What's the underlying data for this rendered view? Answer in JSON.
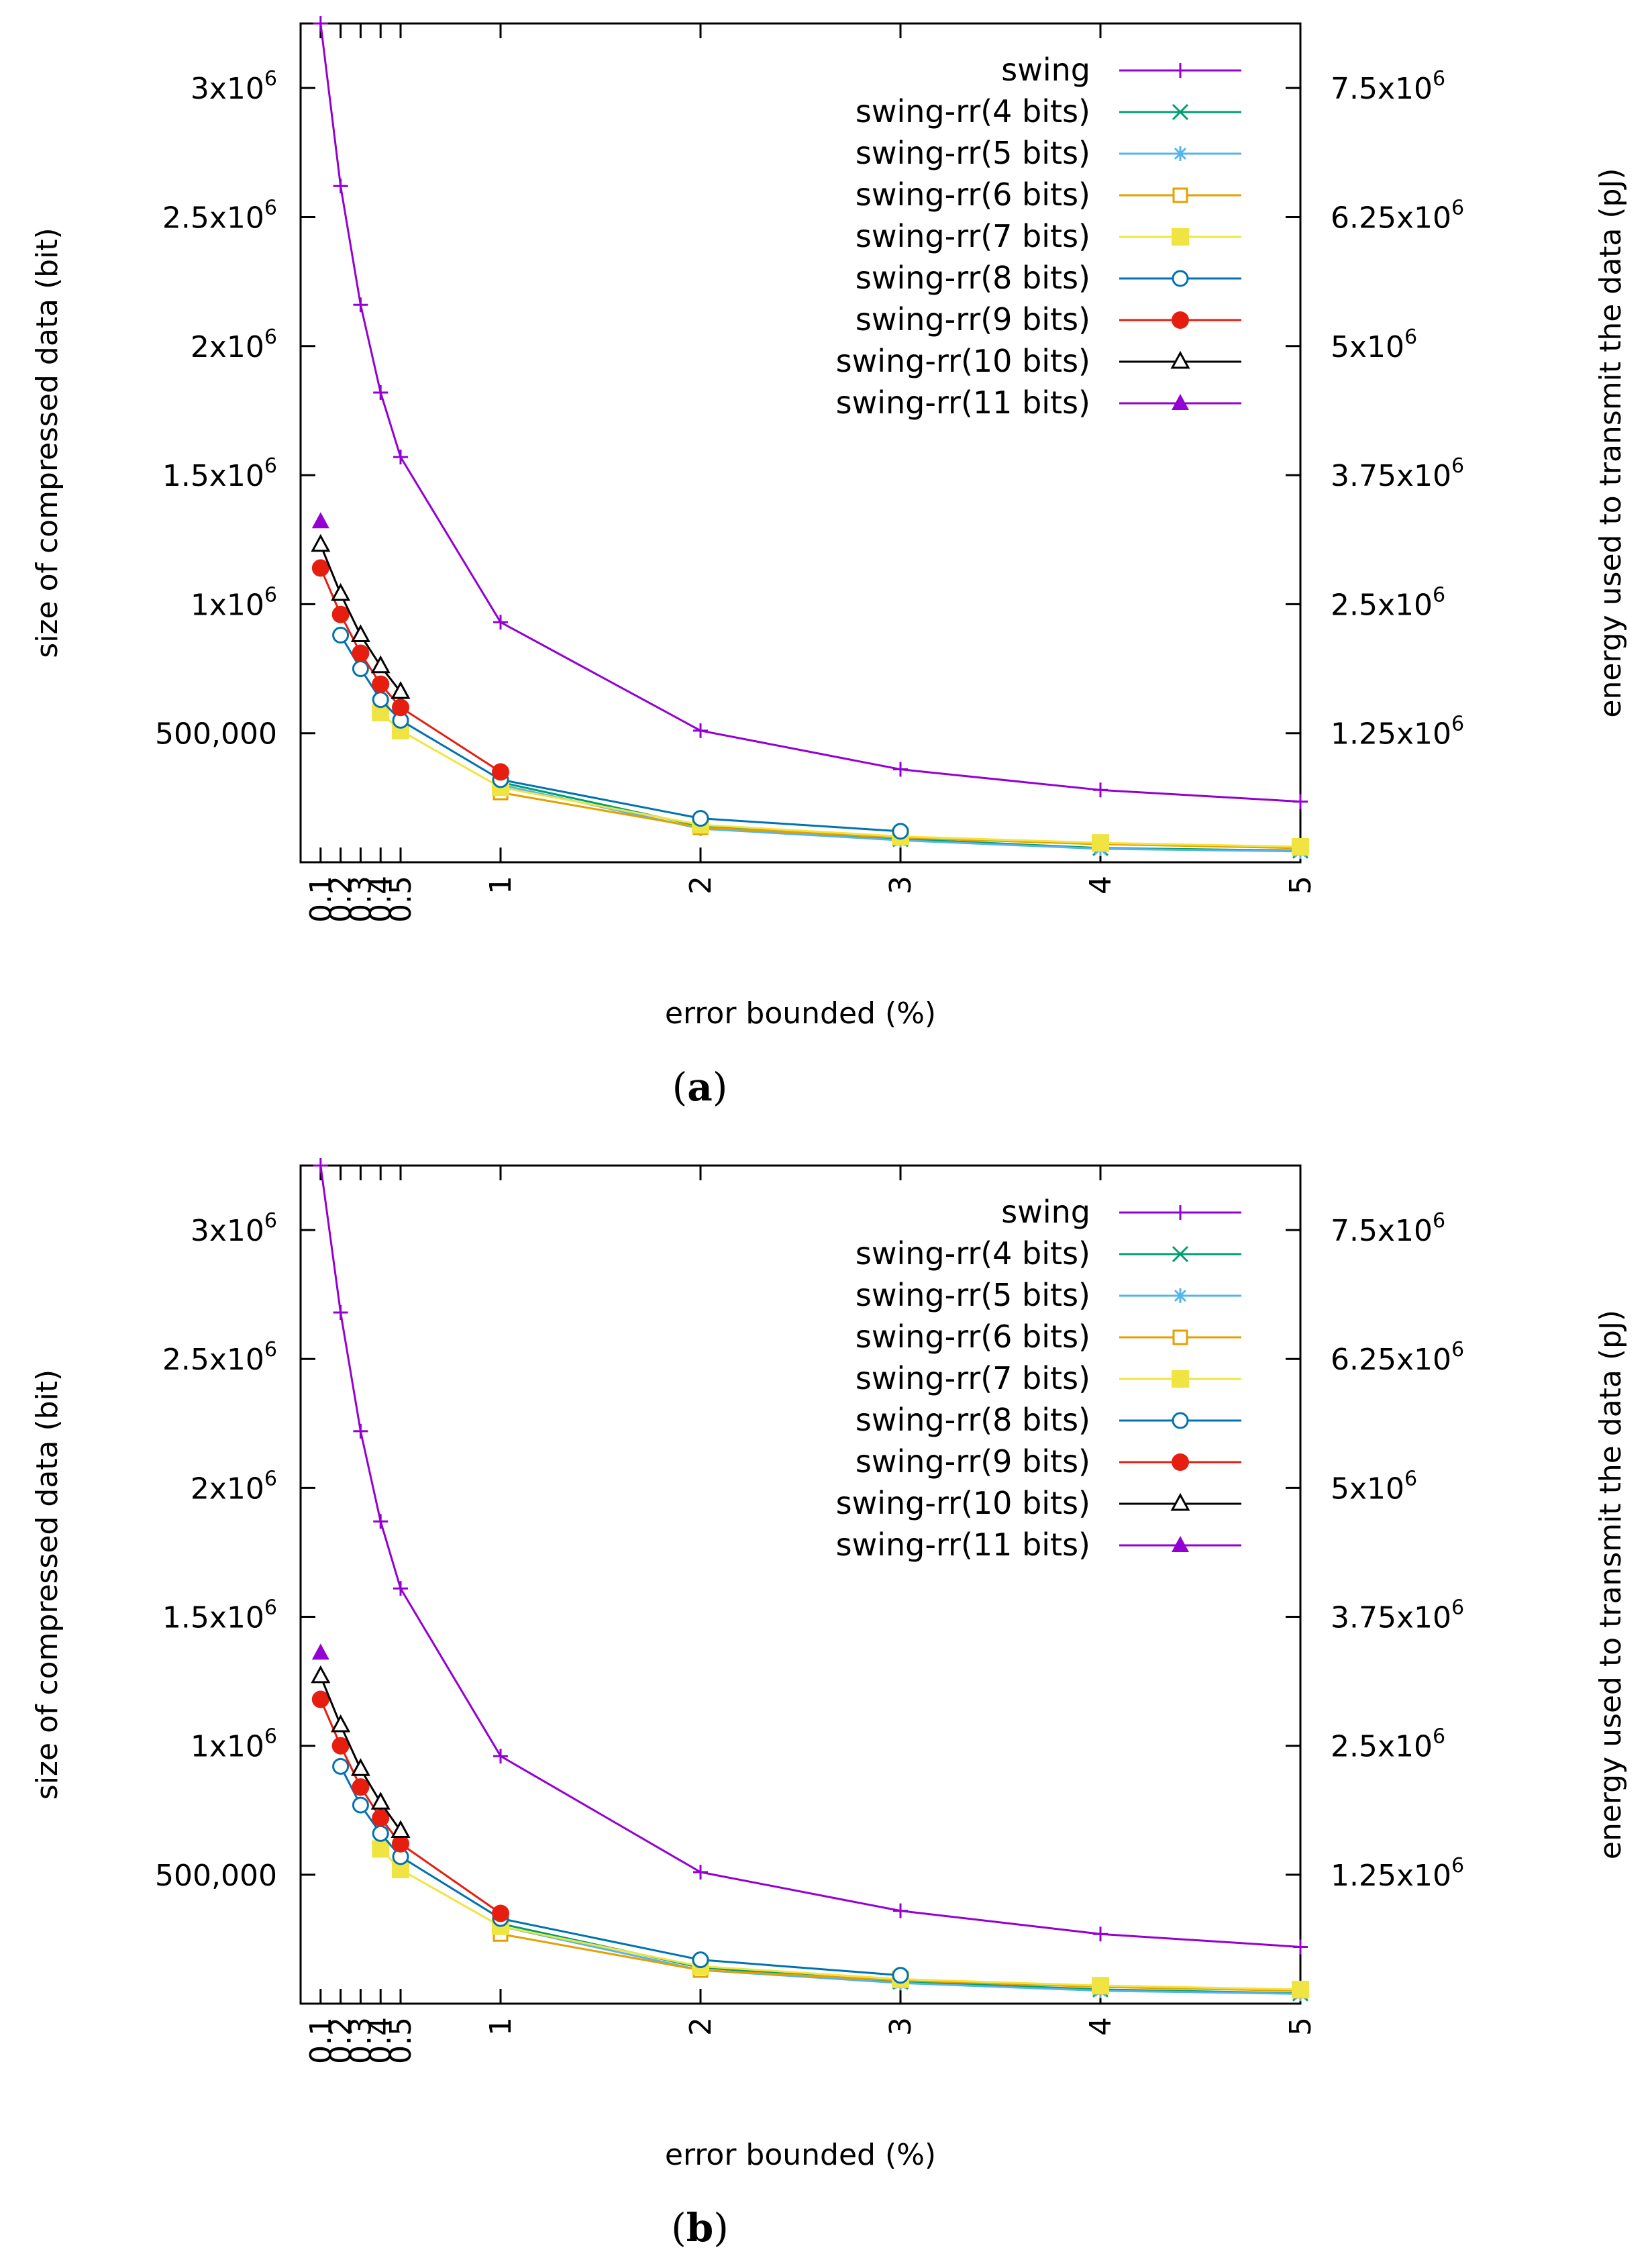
{
  "chart_data": [
    {
      "type": "line",
      "caption_letter": "a",
      "caption": "(a)",
      "xlabel": "error bounded (%)",
      "ylabel": "size of compressed data (bit)",
      "y2label": "energy used to transmit the data (pJ)",
      "xlim": [
        0.0,
        5.0
      ],
      "ylim": [
        0,
        3250000
      ],
      "x_ticks": [
        0.1,
        0.2,
        0.3,
        0.4,
        0.5,
        1,
        2,
        3,
        4,
        5
      ],
      "x_tick_labels": [
        "0.1",
        "0.2",
        "0.3",
        "0.4",
        "0.5",
        "1",
        "2",
        "3",
        "4",
        "5"
      ],
      "y_ticks": [
        500000,
        1000000,
        1500000,
        2000000,
        2500000,
        3000000
      ],
      "y_tick_labels": [
        {
          "base": "500,000",
          "exp": ""
        },
        {
          "base": "1x10",
          "exp": "6"
        },
        {
          "base": "1.5x10",
          "exp": "6"
        },
        {
          "base": "2x10",
          "exp": "6"
        },
        {
          "base": "2.5x10",
          "exp": "6"
        },
        {
          "base": "3x10",
          "exp": "6"
        }
      ],
      "y2_ticks": [
        500000,
        1000000,
        1500000,
        2000000,
        2500000,
        3000000
      ],
      "y2_tick_labels": [
        {
          "base": "1.25x10",
          "exp": "6"
        },
        {
          "base": "2.5x10",
          "exp": "6"
        },
        {
          "base": "3.75x10",
          "exp": "6"
        },
        {
          "base": "5x10",
          "exp": "6"
        },
        {
          "base": "6.25x10",
          "exp": "6"
        },
        {
          "base": "7.5x10",
          "exp": "6"
        }
      ],
      "legend_position": "top-right",
      "series": [
        {
          "name": "swing",
          "color": "#9400d3",
          "marker": "plus",
          "x": [
            0.1,
            0.2,
            0.3,
            0.4,
            0.5,
            1,
            2,
            3,
            4,
            5
          ],
          "y": [
            3250000,
            2620000,
            2160000,
            1820000,
            1570000,
            930000,
            510000,
            360000,
            280000,
            235000
          ]
        },
        {
          "name": "swing-rr(4 bits)",
          "color": "#009e73",
          "marker": "cross",
          "x": [
            1,
            2,
            3,
            4,
            5
          ],
          "y": [
            310000,
            140000,
            90000,
            55000,
            45000
          ]
        },
        {
          "name": "swing-rr(5 bits)",
          "color": "#56b4e9",
          "marker": "star",
          "x": [
            1,
            2,
            3,
            4,
            5
          ],
          "y": [
            300000,
            130000,
            85000,
            52000,
            42000
          ]
        },
        {
          "name": "swing-rr(6 bits)",
          "color": "#e69f00",
          "marker": "open-square",
          "x": [
            1,
            2,
            3,
            4,
            5
          ],
          "y": [
            270000,
            135000,
            95000,
            70000,
            55000
          ]
        },
        {
          "name": "swing-rr(7 bits)",
          "color": "#f0e442",
          "marker": "filled-square",
          "x": [
            0.4,
            0.5,
            1,
            2,
            3,
            4,
            5
          ],
          "y": [
            580000,
            510000,
            290000,
            145000,
            100000,
            75000,
            60000
          ]
        },
        {
          "name": "swing-rr(8 bits)",
          "color": "#0072b2",
          "marker": "open-circle",
          "x": [
            0.2,
            0.3,
            0.4,
            0.5,
            1,
            2,
            3
          ],
          "y": [
            880000,
            750000,
            630000,
            550000,
            320000,
            170000,
            120000
          ]
        },
        {
          "name": "swing-rr(9 bits)",
          "color": "#e51e10",
          "marker": "filled-circle",
          "x": [
            0.1,
            0.2,
            0.3,
            0.4,
            0.5,
            1
          ],
          "y": [
            1140000,
            960000,
            810000,
            690000,
            600000,
            350000
          ]
        },
        {
          "name": "swing-rr(10 bits)",
          "color": "#000000",
          "marker": "open-triangle",
          "x": [
            0.1,
            0.2,
            0.3,
            0.4,
            0.5
          ],
          "y": [
            1230000,
            1040000,
            880000,
            760000,
            660000
          ]
        },
        {
          "name": "swing-rr(11 bits)",
          "color": "#9400d3",
          "marker": "filled-triangle",
          "x": [
            0.1
          ],
          "y": [
            1320000
          ]
        }
      ]
    },
    {
      "type": "line",
      "caption_letter": "b",
      "caption": "(b)",
      "xlabel": "error bounded (%)",
      "ylabel": "size of compressed data (bit)",
      "y2label": "energy used to transmit the data (pJ)",
      "xlim": [
        0.0,
        5.0
      ],
      "ylim": [
        0,
        3250000
      ],
      "x_ticks": [
        0.1,
        0.2,
        0.3,
        0.4,
        0.5,
        1,
        2,
        3,
        4,
        5
      ],
      "x_tick_labels": [
        "0.1",
        "0.2",
        "0.3",
        "0.4",
        "0.5",
        "1",
        "2",
        "3",
        "4",
        "5"
      ],
      "y_ticks": [
        500000,
        1000000,
        1500000,
        2000000,
        2500000,
        3000000
      ],
      "y_tick_labels": [
        {
          "base": "500,000",
          "exp": ""
        },
        {
          "base": "1x10",
          "exp": "6"
        },
        {
          "base": "1.5x10",
          "exp": "6"
        },
        {
          "base": "2x10",
          "exp": "6"
        },
        {
          "base": "2.5x10",
          "exp": "6"
        },
        {
          "base": "3x10",
          "exp": "6"
        }
      ],
      "y2_ticks": [
        500000,
        1000000,
        1500000,
        2000000,
        2500000,
        3000000
      ],
      "y2_tick_labels": [
        {
          "base": "1.25x10",
          "exp": "6"
        },
        {
          "base": "2.5x10",
          "exp": "6"
        },
        {
          "base": "3.75x10",
          "exp": "6"
        },
        {
          "base": "5x10",
          "exp": "6"
        },
        {
          "base": "6.25x10",
          "exp": "6"
        },
        {
          "base": "7.5x10",
          "exp": "6"
        }
      ],
      "legend_position": "top-right",
      "series": [
        {
          "name": "swing",
          "color": "#9400d3",
          "marker": "plus",
          "x": [
            0.1,
            0.2,
            0.3,
            0.4,
            0.5,
            1,
            2,
            3,
            4,
            5
          ],
          "y": [
            3250000,
            2680000,
            2220000,
            1870000,
            1610000,
            960000,
            510000,
            360000,
            270000,
            220000
          ]
        },
        {
          "name": "swing-rr(4 bits)",
          "color": "#009e73",
          "marker": "cross",
          "x": [
            1,
            2,
            3,
            4,
            5
          ],
          "y": [
            310000,
            140000,
            85000,
            55000,
            40000
          ]
        },
        {
          "name": "swing-rr(5 bits)",
          "color": "#56b4e9",
          "marker": "star",
          "x": [
            1,
            2,
            3,
            4,
            5
          ],
          "y": [
            300000,
            130000,
            80000,
            50000,
            38000
          ]
        },
        {
          "name": "swing-rr(6 bits)",
          "color": "#e69f00",
          "marker": "open-square",
          "x": [
            1,
            2,
            3,
            4,
            5
          ],
          "y": [
            270000,
            130000,
            90000,
            65000,
            50000
          ]
        },
        {
          "name": "swing-rr(7 bits)",
          "color": "#f0e442",
          "marker": "filled-square",
          "x": [
            0.4,
            0.5,
            1,
            2,
            3,
            4,
            5
          ],
          "y": [
            600000,
            520000,
            300000,
            145000,
            95000,
            70000,
            55000
          ]
        },
        {
          "name": "swing-rr(8 bits)",
          "color": "#0072b2",
          "marker": "open-circle",
          "x": [
            0.2,
            0.3,
            0.4,
            0.5,
            1,
            2,
            3
          ],
          "y": [
            920000,
            770000,
            660000,
            570000,
            330000,
            170000,
            110000
          ]
        },
        {
          "name": "swing-rr(9 bits)",
          "color": "#e51e10",
          "marker": "filled-circle",
          "x": [
            0.1,
            0.2,
            0.3,
            0.4,
            0.5,
            1
          ],
          "y": [
            1180000,
            1000000,
            840000,
            720000,
            620000,
            350000
          ]
        },
        {
          "name": "swing-rr(10 bits)",
          "color": "#000000",
          "marker": "open-triangle",
          "x": [
            0.1,
            0.2,
            0.3,
            0.4,
            0.5
          ],
          "y": [
            1270000,
            1080000,
            910000,
            780000,
            670000
          ]
        },
        {
          "name": "swing-rr(11 bits)",
          "color": "#9400d3",
          "marker": "filled-triangle",
          "x": [
            0.1
          ],
          "y": [
            1360000
          ]
        }
      ]
    }
  ]
}
